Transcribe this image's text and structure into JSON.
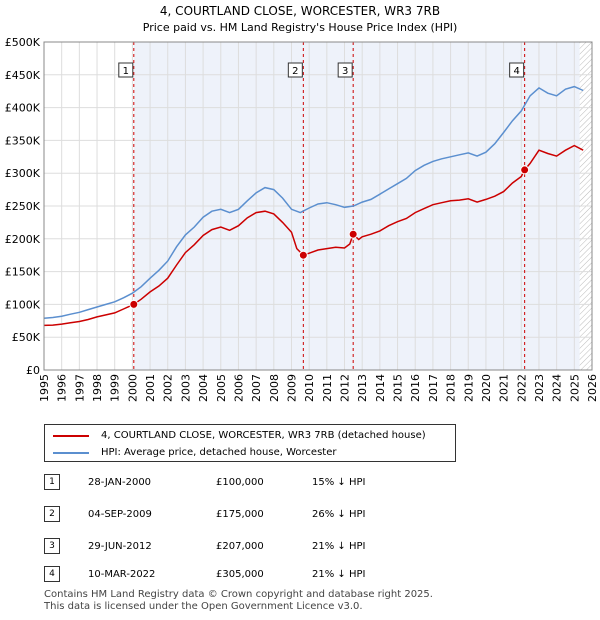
{
  "chart_data": {
    "type": "line",
    "title": "4, COURTLAND CLOSE, WORCESTER, WR3 7RB",
    "subtitle": "Price paid vs. HM Land Registry's House Price Index (HPI)",
    "xlabel": "",
    "ylabel": "",
    "xlim": [
      1995,
      2026
    ],
    "ylim": [
      0,
      500000
    ],
    "yticks": [
      0,
      50000,
      100000,
      150000,
      200000,
      250000,
      300000,
      350000,
      400000,
      450000,
      500000
    ],
    "ytick_labels": [
      "£0",
      "£50K",
      "£100K",
      "£150K",
      "£200K",
      "£250K",
      "£300K",
      "£350K",
      "£400K",
      "£450K",
      "£500K"
    ],
    "xticks": [
      "1995",
      "1996",
      "1997",
      "1998",
      "1999",
      "2000",
      "2001",
      "2002",
      "2003",
      "2004",
      "2005",
      "2006",
      "2007",
      "2008",
      "2009",
      "2010",
      "2011",
      "2012",
      "2013",
      "2014",
      "2015",
      "2016",
      "2017",
      "2018",
      "2019",
      "2020",
      "2021",
      "2022",
      "2023",
      "2024",
      "2025",
      "2026"
    ],
    "grid": true,
    "shaded_until": 2025.3,
    "series": [
      {
        "name": "4, COURTLAND CLOSE, WORCESTER, WR3 7RB (detached house)",
        "color": "#cc0000",
        "x": [
          1995.0,
          1995.5,
          1996.0,
          1996.5,
          1997.0,
          1997.5,
          1998.0,
          1998.5,
          1999.0,
          1999.5,
          2000.08,
          2000.5,
          2001.0,
          2001.5,
          2002.0,
          2002.5,
          2003.0,
          2003.5,
          2004.0,
          2004.5,
          2005.0,
          2005.5,
          2006.0,
          2006.5,
          2007.0,
          2007.5,
          2008.0,
          2008.5,
          2009.0,
          2009.3,
          2009.67,
          2010.0,
          2010.5,
          2011.0,
          2011.5,
          2012.0,
          2012.3,
          2012.49,
          2012.8,
          2013.0,
          2013.5,
          2014.0,
          2014.5,
          2015.0,
          2015.5,
          2016.0,
          2016.5,
          2017.0,
          2017.5,
          2018.0,
          2018.5,
          2019.0,
          2019.5,
          2020.0,
          2020.5,
          2021.0,
          2021.5,
          2022.0,
          2022.19,
          2022.5,
          2023.0,
          2023.5,
          2024.0,
          2024.5,
          2025.0,
          2025.5
        ],
        "y": [
          68000,
          68500,
          70000,
          72000,
          74000,
          77000,
          81000,
          84000,
          87000,
          93000,
          100000,
          108000,
          119000,
          128000,
          140000,
          160000,
          179000,
          191000,
          205000,
          214000,
          218000,
          213000,
          220000,
          232000,
          240000,
          242000,
          238000,
          225000,
          210000,
          185000,
          175000,
          178000,
          183000,
          185000,
          187000,
          186000,
          192000,
          207000,
          199000,
          203000,
          207000,
          212000,
          220000,
          226000,
          231000,
          240000,
          246000,
          252000,
          255000,
          258000,
          259000,
          261000,
          256000,
          260000,
          265000,
          272000,
          285000,
          295000,
          305000,
          315000,
          335000,
          330000,
          326000,
          335000,
          342000,
          335000
        ]
      },
      {
        "name": "HPI: Average price, detached house, Worcester",
        "color": "#5b8fcf",
        "x": [
          1995.0,
          1995.5,
          1996.0,
          1996.5,
          1997.0,
          1997.5,
          1998.0,
          1998.5,
          1999.0,
          1999.5,
          2000.0,
          2000.5,
          2001.0,
          2001.5,
          2002.0,
          2002.5,
          2003.0,
          2003.5,
          2004.0,
          2004.5,
          2005.0,
          2005.5,
          2006.0,
          2006.5,
          2007.0,
          2007.5,
          2008.0,
          2008.5,
          2009.0,
          2009.5,
          2010.0,
          2010.5,
          2011.0,
          2011.5,
          2012.0,
          2012.5,
          2013.0,
          2013.5,
          2014.0,
          2014.5,
          2015.0,
          2015.5,
          2016.0,
          2016.5,
          2017.0,
          2017.5,
          2018.0,
          2018.5,
          2019.0,
          2019.5,
          2020.0,
          2020.5,
          2021.0,
          2021.5,
          2022.0,
          2022.5,
          2023.0,
          2023.5,
          2024.0,
          2024.5,
          2025.0,
          2025.5
        ],
        "y": [
          79000,
          80000,
          82000,
          85000,
          88000,
          92000,
          96000,
          100000,
          104000,
          110000,
          117000,
          127000,
          140000,
          152000,
          166000,
          188000,
          206000,
          218000,
          233000,
          242000,
          245000,
          240000,
          245000,
          258000,
          270000,
          278000,
          275000,
          262000,
          245000,
          240000,
          247000,
          253000,
          255000,
          252000,
          248000,
          250000,
          256000,
          260000,
          268000,
          276000,
          284000,
          292000,
          304000,
          312000,
          318000,
          322000,
          325000,
          328000,
          331000,
          326000,
          332000,
          345000,
          362000,
          380000,
          395000,
          418000,
          430000,
          422000,
          418000,
          428000,
          432000,
          426000
        ]
      }
    ],
    "sale_markers": [
      {
        "label": "1",
        "x": 2000.08,
        "y": 100000
      },
      {
        "label": "2",
        "x": 2009.67,
        "y": 175000
      },
      {
        "label": "3",
        "x": 2012.49,
        "y": 207000
      },
      {
        "label": "4",
        "x": 2022.19,
        "y": 305000
      }
    ]
  },
  "legend": {
    "property_label": "4, COURTLAND CLOSE, WORCESTER, WR3 7RB (detached house)",
    "hpi_label": "HPI: Average price, detached house, Worcester"
  },
  "sales": [
    {
      "num": "1",
      "date": "28-JAN-2000",
      "price": "£100,000",
      "hpi": "15% ↓ HPI"
    },
    {
      "num": "2",
      "date": "04-SEP-2009",
      "price": "£175,000",
      "hpi": "26% ↓ HPI"
    },
    {
      "num": "3",
      "date": "29-JUN-2012",
      "price": "£207,000",
      "hpi": "21% ↓ HPI"
    },
    {
      "num": "4",
      "date": "10-MAR-2022",
      "price": "£305,000",
      "hpi": "21% ↓ HPI"
    }
  ],
  "footer": {
    "line1": "Contains HM Land Registry data © Crown copyright and database right 2025.",
    "line2": "This data is licensed under the Open Government Licence v3.0."
  },
  "colors": {
    "property": "#cc0000",
    "hpi": "#5b8fcf",
    "plot_bg": "#eef2fa",
    "grid": "#ffffff",
    "marker_line": "#cc0000"
  }
}
